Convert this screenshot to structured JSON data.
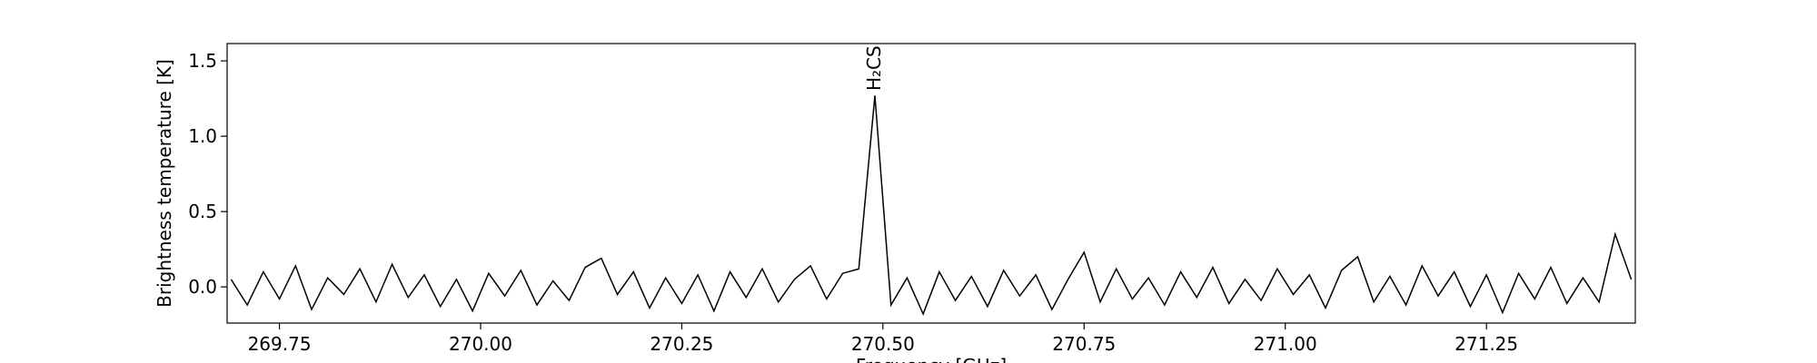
{
  "chart_data": {
    "type": "line",
    "ylabel": "Brightness temperature [K]",
    "xlabel": "Frequency [GHz]",
    "color": "#000000",
    "grid": false,
    "xlim": [
      269.685,
      271.435
    ],
    "ylim": [
      -0.24,
      1.615
    ],
    "xticks": [
      269.75,
      {
        "value": 270.0,
        "label": "270.00"
      },
      270.25,
      {
        "value": 270.5,
        "label": "270.50"
      },
      270.75,
      {
        "value": 271.0,
        "label": "271.00"
      },
      271.25
    ],
    "yticks": [
      {
        "value": 0,
        "label": "0.0"
      },
      0.5,
      {
        "value": 1,
        "label": "1.0"
      },
      1.5
    ],
    "annotations": [
      {
        "text": "H₂CS",
        "x": 270.49
      }
    ],
    "x": [
      269.69,
      269.71,
      269.73,
      269.75,
      269.77,
      269.79,
      269.81,
      269.83,
      269.85,
      269.87,
      269.89,
      269.91,
      269.93,
      269.95,
      269.97,
      269.99,
      270.01,
      270.03,
      270.05,
      270.07,
      270.09,
      270.11,
      270.13,
      270.15,
      270.17,
      270.19,
      270.21,
      270.23,
      270.25,
      270.27,
      270.29,
      270.31,
      270.33,
      270.35,
      270.37,
      270.39,
      270.41,
      270.43,
      270.45,
      270.47,
      270.49,
      270.51,
      270.53,
      270.55,
      270.57,
      270.59,
      270.61,
      270.63,
      270.65,
      270.67,
      270.69,
      270.71,
      270.73,
      270.75,
      270.77,
      270.79,
      270.81,
      270.83,
      270.85,
      270.87,
      270.89,
      270.91,
      270.93,
      270.95,
      270.97,
      270.99,
      271.01,
      271.03,
      271.05,
      271.07,
      271.09,
      271.11,
      271.13,
      271.15,
      271.17,
      271.19,
      271.21,
      271.23,
      271.25,
      271.27,
      271.29,
      271.31,
      271.33,
      271.35,
      271.37,
      271.39,
      271.41,
      271.43
    ],
    "values": [
      0.05,
      -0.12,
      0.1,
      -0.08,
      0.14,
      -0.15,
      0.06,
      -0.05,
      0.12,
      -0.1,
      0.15,
      -0.07,
      0.08,
      -0.13,
      0.05,
      -0.16,
      0.09,
      -0.06,
      0.11,
      -0.12,
      0.04,
      -0.09,
      0.13,
      0.19,
      -0.05,
      0.1,
      -0.14,
      0.06,
      -0.11,
      0.08,
      -0.16,
      0.1,
      -0.07,
      0.12,
      -0.1,
      0.05,
      0.14,
      -0.08,
      0.09,
      0.12,
      1.27,
      -0.12,
      0.06,
      -0.18,
      0.1,
      -0.09,
      0.07,
      -0.13,
      0.11,
      -0.06,
      0.08,
      -0.15,
      0.05,
      0.23,
      -0.1,
      0.12,
      -0.08,
      0.06,
      -0.12,
      0.1,
      -0.07,
      0.13,
      -0.11,
      0.05,
      -0.09,
      0.12,
      -0.05,
      0.08,
      -0.14,
      0.11,
      0.2,
      -0.1,
      0.07,
      -0.12,
      0.14,
      -0.06,
      0.1,
      -0.13,
      0.08,
      -0.17,
      0.09,
      -0.08,
      0.13,
      -0.11,
      0.06,
      -0.1,
      0.35,
      0.05
    ]
  }
}
